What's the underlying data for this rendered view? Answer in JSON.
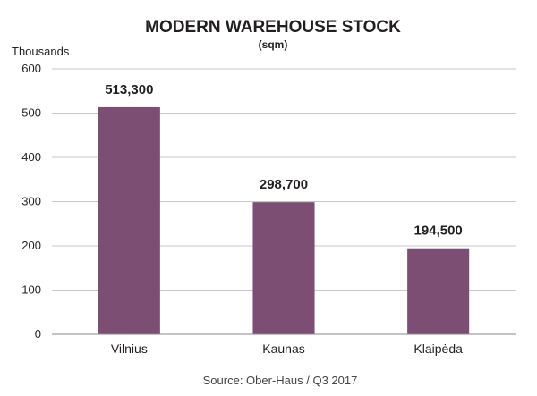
{
  "chart_data": {
    "type": "bar",
    "title": "MODERN WAREHOUSE STOCK",
    "subtitle": "(sqm)",
    "ylabel": "Thousands",
    "xlabel": "",
    "categories": [
      "Vilnius",
      "Kaunas",
      "Klaipėda"
    ],
    "values": [
      513.3,
      298.7,
      194.5
    ],
    "data_labels": [
      "513,300",
      "298,700",
      "194,500"
    ],
    "ylim": [
      0,
      600
    ],
    "yticks": [
      0,
      100,
      200,
      300,
      400,
      500,
      600
    ],
    "grid": true,
    "legend": "none",
    "bar_color": "#7d4e74",
    "grid_color": "#c8c8c8"
  },
  "source": "Source: Ober-Haus  / Q3 2017"
}
